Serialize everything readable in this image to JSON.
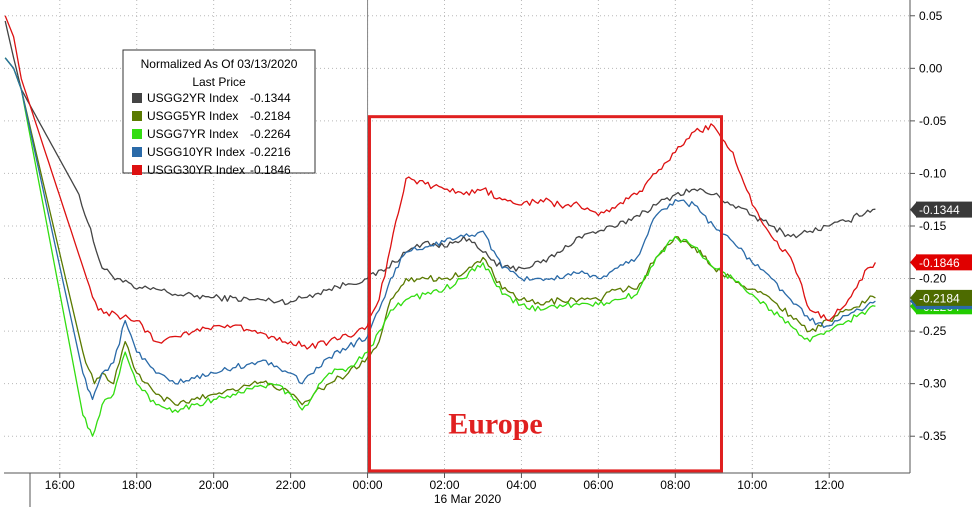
{
  "chart_data": {
    "type": "line",
    "legend": {
      "title_line1": "Normalized As Of 03/13/2020",
      "title_line2": "Last Price",
      "placement": "top-left"
    },
    "y_ticks": [
      "0.05",
      "0.00",
      "-0.05",
      "-0.10",
      "-0.15",
      "-0.20",
      "-0.25",
      "-0.30",
      "-0.35"
    ],
    "y_tick_values": [
      0.05,
      0.0,
      -0.05,
      -0.1,
      -0.15,
      -0.2,
      -0.25,
      -0.3,
      -0.35
    ],
    "ylim": [
      -0.385,
      0.065
    ],
    "x_tick_labels": [
      "16:00",
      "18:00",
      "20:00",
      "22:00",
      "00:00",
      "02:00",
      "04:00",
      "06:00",
      "08:00",
      "10:00",
      "12:00"
    ],
    "x_tick_hours": [
      0,
      2,
      4,
      6,
      8,
      10,
      12,
      14,
      16,
      18,
      20
    ],
    "xlim_hours": [
      -1.45,
      22.1
    ],
    "date_label": "16 Mar 2020",
    "date_label_hour": 8,
    "session_start_hour": 8,
    "series": [
      {
        "name": "USGG2YR Index",
        "last_value": "-0.1344",
        "last_label": "-0.1344",
        "color": "#444444",
        "badge_color": "#3a3a3a",
        "points": [
          [
            -1.42,
            0.045
          ],
          [
            -1.2,
            0.01
          ],
          [
            -1.0,
            -0.02
          ],
          [
            0.5,
            -0.12
          ],
          [
            1.1,
            -0.19
          ],
          [
            1.5,
            -0.2
          ],
          [
            2.0,
            -0.21
          ],
          [
            2.5,
            -0.21
          ],
          [
            3.0,
            -0.215
          ],
          [
            4.0,
            -0.218
          ],
          [
            5.0,
            -0.22
          ],
          [
            6.0,
            -0.222
          ],
          [
            7.0,
            -0.21
          ],
          [
            7.5,
            -0.205
          ],
          [
            8.0,
            -0.2
          ],
          [
            8.5,
            -0.19
          ],
          [
            9.0,
            -0.175
          ],
          [
            9.5,
            -0.165
          ],
          [
            10.0,
            -0.17
          ],
          [
            10.5,
            -0.16
          ],
          [
            11.0,
            -0.175
          ],
          [
            11.5,
            -0.19
          ],
          [
            12.0,
            -0.19
          ],
          [
            12.5,
            -0.185
          ],
          [
            13.0,
            -0.175
          ],
          [
            13.5,
            -0.16
          ],
          [
            14.0,
            -0.155
          ],
          [
            14.5,
            -0.15
          ],
          [
            15.0,
            -0.14
          ],
          [
            15.5,
            -0.13
          ],
          [
            16.0,
            -0.12
          ],
          [
            16.5,
            -0.115
          ],
          [
            17.0,
            -0.12
          ],
          [
            17.5,
            -0.13
          ],
          [
            18.0,
            -0.14
          ],
          [
            18.5,
            -0.15
          ],
          [
            19.0,
            -0.16
          ],
          [
            19.5,
            -0.155
          ],
          [
            20.0,
            -0.15
          ],
          [
            20.5,
            -0.145
          ],
          [
            21.0,
            -0.135
          ],
          [
            21.2,
            -0.134
          ]
        ]
      },
      {
        "name": "USGG5YR Index",
        "last_value": "-0.2184",
        "last_label": "-0.2184",
        "color": "#5a7a00",
        "badge_color": "#4d6b00",
        "points": [
          [
            -1.42,
            0.01
          ],
          [
            -1.2,
            0.0
          ],
          [
            -1.0,
            -0.02
          ],
          [
            0.6,
            -0.27
          ],
          [
            0.9,
            -0.3
          ],
          [
            1.1,
            -0.29
          ],
          [
            1.4,
            -0.3
          ],
          [
            1.7,
            -0.26
          ],
          [
            2.0,
            -0.29
          ],
          [
            2.5,
            -0.31
          ],
          [
            3.0,
            -0.32
          ],
          [
            3.5,
            -0.315
          ],
          [
            4.0,
            -0.31
          ],
          [
            4.5,
            -0.305
          ],
          [
            5.0,
            -0.3
          ],
          [
            5.5,
            -0.3
          ],
          [
            6.0,
            -0.31
          ],
          [
            6.3,
            -0.32
          ],
          [
            6.6,
            -0.31
          ],
          [
            7.0,
            -0.3
          ],
          [
            7.5,
            -0.29
          ],
          [
            8.0,
            -0.275
          ],
          [
            8.3,
            -0.26
          ],
          [
            8.6,
            -0.22
          ],
          [
            9.0,
            -0.2
          ],
          [
            9.5,
            -0.2
          ],
          [
            10.0,
            -0.2
          ],
          [
            10.5,
            -0.195
          ],
          [
            11.0,
            -0.18
          ],
          [
            11.5,
            -0.21
          ],
          [
            12.0,
            -0.22
          ],
          [
            12.5,
            -0.225
          ],
          [
            13.0,
            -0.22
          ],
          [
            13.5,
            -0.22
          ],
          [
            14.0,
            -0.22
          ],
          [
            14.5,
            -0.21
          ],
          [
            15.0,
            -0.21
          ],
          [
            15.5,
            -0.18
          ],
          [
            16.0,
            -0.16
          ],
          [
            16.5,
            -0.17
          ],
          [
            17.0,
            -0.19
          ],
          [
            17.5,
            -0.2
          ],
          [
            18.0,
            -0.21
          ],
          [
            18.5,
            -0.22
          ],
          [
            19.0,
            -0.235
          ],
          [
            19.5,
            -0.25
          ],
          [
            20.0,
            -0.24
          ],
          [
            20.5,
            -0.23
          ],
          [
            21.0,
            -0.22
          ],
          [
            21.2,
            -0.2184
          ]
        ]
      },
      {
        "name": "USGG7YR Index",
        "last_value": "-0.2264",
        "last_label": "-0.2264",
        "color": "#33dd11",
        "badge_color": "#22cc00",
        "points": [
          [
            -1.42,
            0.01
          ],
          [
            -1.2,
            0.0
          ],
          [
            -1.0,
            -0.02
          ],
          [
            0.6,
            -0.33
          ],
          [
            0.85,
            -0.35
          ],
          [
            1.1,
            -0.32
          ],
          [
            1.4,
            -0.31
          ],
          [
            1.7,
            -0.27
          ],
          [
            2.0,
            -0.3
          ],
          [
            2.5,
            -0.32
          ],
          [
            3.0,
            -0.325
          ],
          [
            3.5,
            -0.32
          ],
          [
            4.0,
            -0.315
          ],
          [
            4.5,
            -0.31
          ],
          [
            5.0,
            -0.305
          ],
          [
            5.5,
            -0.3
          ],
          [
            6.0,
            -0.31
          ],
          [
            6.3,
            -0.325
          ],
          [
            6.6,
            -0.31
          ],
          [
            7.0,
            -0.29
          ],
          [
            7.5,
            -0.285
          ],
          [
            8.0,
            -0.27
          ],
          [
            8.3,
            -0.25
          ],
          [
            8.6,
            -0.23
          ],
          [
            9.0,
            -0.22
          ],
          [
            9.5,
            -0.215
          ],
          [
            10.0,
            -0.21
          ],
          [
            10.5,
            -0.2
          ],
          [
            11.0,
            -0.185
          ],
          [
            11.5,
            -0.215
          ],
          [
            12.0,
            -0.225
          ],
          [
            12.5,
            -0.23
          ],
          [
            13.0,
            -0.225
          ],
          [
            13.5,
            -0.225
          ],
          [
            14.0,
            -0.225
          ],
          [
            14.5,
            -0.22
          ],
          [
            15.0,
            -0.215
          ],
          [
            15.5,
            -0.18
          ],
          [
            16.0,
            -0.16
          ],
          [
            16.5,
            -0.17
          ],
          [
            17.0,
            -0.19
          ],
          [
            17.5,
            -0.2
          ],
          [
            18.0,
            -0.215
          ],
          [
            18.5,
            -0.23
          ],
          [
            19.0,
            -0.245
          ],
          [
            19.5,
            -0.26
          ],
          [
            20.0,
            -0.25
          ],
          [
            20.5,
            -0.24
          ],
          [
            21.0,
            -0.23
          ],
          [
            21.2,
            -0.2264
          ]
        ]
      },
      {
        "name": "USGG10YR Index",
        "last_value": "-0.2216",
        "last_label": "-0.2216",
        "color": "#2a6aa8",
        "badge_color": "#2a6aa8",
        "points": [
          [
            -1.42,
            0.01
          ],
          [
            -1.2,
            0.0
          ],
          [
            -1.0,
            -0.02
          ],
          [
            0.6,
            -0.29
          ],
          [
            0.85,
            -0.315
          ],
          [
            1.1,
            -0.29
          ],
          [
            1.4,
            -0.28
          ],
          [
            1.7,
            -0.24
          ],
          [
            2.0,
            -0.27
          ],
          [
            2.5,
            -0.29
          ],
          [
            3.0,
            -0.3
          ],
          [
            3.5,
            -0.295
          ],
          [
            4.0,
            -0.29
          ],
          [
            4.5,
            -0.285
          ],
          [
            5.0,
            -0.28
          ],
          [
            5.5,
            -0.28
          ],
          [
            6.0,
            -0.29
          ],
          [
            6.3,
            -0.3
          ],
          [
            6.6,
            -0.29
          ],
          [
            7.0,
            -0.275
          ],
          [
            7.5,
            -0.265
          ],
          [
            8.0,
            -0.255
          ],
          [
            8.3,
            -0.23
          ],
          [
            8.6,
            -0.2
          ],
          [
            9.0,
            -0.175
          ],
          [
            9.5,
            -0.17
          ],
          [
            10.0,
            -0.165
          ],
          [
            10.5,
            -0.16
          ],
          [
            11.0,
            -0.155
          ],
          [
            11.5,
            -0.19
          ],
          [
            12.0,
            -0.2
          ],
          [
            12.5,
            -0.2
          ],
          [
            13.0,
            -0.2
          ],
          [
            13.5,
            -0.195
          ],
          [
            14.0,
            -0.2
          ],
          [
            14.5,
            -0.19
          ],
          [
            15.0,
            -0.18
          ],
          [
            15.5,
            -0.14
          ],
          [
            16.0,
            -0.125
          ],
          [
            16.5,
            -0.13
          ],
          [
            17.0,
            -0.15
          ],
          [
            17.5,
            -0.165
          ],
          [
            18.0,
            -0.185
          ],
          [
            18.5,
            -0.2
          ],
          [
            19.0,
            -0.22
          ],
          [
            19.5,
            -0.24
          ],
          [
            20.0,
            -0.245
          ],
          [
            20.5,
            -0.235
          ],
          [
            21.0,
            -0.225
          ],
          [
            21.2,
            -0.2216
          ]
        ]
      },
      {
        "name": "USGG30YR Index",
        "last_value": "-0.1846",
        "last_label": "-0.1846",
        "color": "#dd1111",
        "badge_color": "#e00000",
        "points": [
          [
            -1.42,
            0.05
          ],
          [
            -1.2,
            0.03
          ],
          [
            -1.0,
            -0.01
          ],
          [
            0.7,
            -0.2
          ],
          [
            1.0,
            -0.23
          ],
          [
            1.5,
            -0.235
          ],
          [
            2.0,
            -0.24
          ],
          [
            2.5,
            -0.26
          ],
          [
            3.0,
            -0.255
          ],
          [
            3.5,
            -0.25
          ],
          [
            4.0,
            -0.245
          ],
          [
            4.5,
            -0.245
          ],
          [
            5.0,
            -0.25
          ],
          [
            5.5,
            -0.255
          ],
          [
            6.0,
            -0.26
          ],
          [
            6.5,
            -0.265
          ],
          [
            7.0,
            -0.26
          ],
          [
            7.5,
            -0.255
          ],
          [
            8.0,
            -0.245
          ],
          [
            8.3,
            -0.22
          ],
          [
            8.6,
            -0.17
          ],
          [
            9.0,
            -0.105
          ],
          [
            9.5,
            -0.11
          ],
          [
            10.0,
            -0.115
          ],
          [
            10.5,
            -0.12
          ],
          [
            11.0,
            -0.115
          ],
          [
            11.5,
            -0.125
          ],
          [
            12.0,
            -0.13
          ],
          [
            12.5,
            -0.125
          ],
          [
            13.0,
            -0.13
          ],
          [
            13.5,
            -0.13
          ],
          [
            14.0,
            -0.14
          ],
          [
            14.5,
            -0.13
          ],
          [
            15.0,
            -0.12
          ],
          [
            15.5,
            -0.1
          ],
          [
            16.0,
            -0.08
          ],
          [
            16.5,
            -0.06
          ],
          [
            17.0,
            -0.055
          ],
          [
            17.5,
            -0.08
          ],
          [
            18.0,
            -0.13
          ],
          [
            18.5,
            -0.16
          ],
          [
            19.0,
            -0.18
          ],
          [
            19.5,
            -0.23
          ],
          [
            20.0,
            -0.24
          ],
          [
            20.5,
            -0.22
          ],
          [
            21.0,
            -0.19
          ],
          [
            21.2,
            -0.1846
          ]
        ]
      }
    ],
    "annotation": {
      "text": "Europe",
      "box_hours": [
        8.05,
        17.2
      ],
      "box_values": [
        -0.046,
        -0.383
      ],
      "label_value": -0.34,
      "color": "#e02020"
    }
  }
}
